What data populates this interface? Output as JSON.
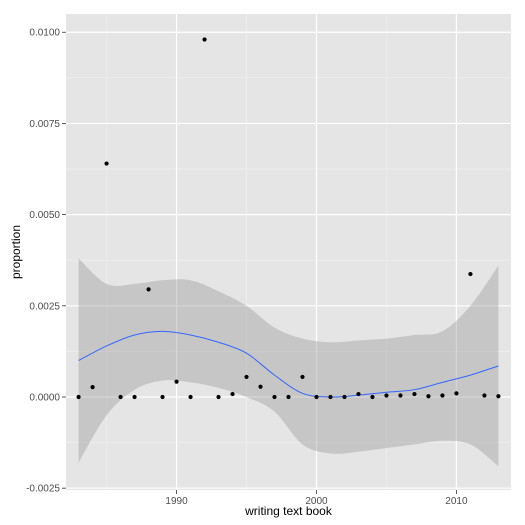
{
  "chart_data": {
    "type": "scatter",
    "title": "",
    "xlabel": "writing text book",
    "ylabel": "proportion",
    "xlim": [
      1982.1,
      2013.9
    ],
    "ylim": [
      -0.00255,
      0.0105
    ],
    "x_ticks": [
      1990,
      2000,
      2010
    ],
    "x_tick_labels": [
      "1990",
      "2000",
      "2010"
    ],
    "y_ticks": [
      -0.0025,
      0,
      0.0025,
      0.005,
      0.0075,
      0.01
    ],
    "y_tick_labels": [
      "-0.0025",
      "0.0000",
      "0.0025",
      "0.0050",
      "0.0075",
      "0.0100"
    ],
    "grid": true,
    "legend": "none",
    "colors": {
      "panel": "#e5e5e5",
      "grid_major": "#ffffff",
      "point": "#000000",
      "smooth_line": "#3366ff",
      "ribbon": "#999999"
    },
    "series": [
      {
        "kind": "points",
        "x": [
          1983,
          1984,
          1985,
          1986,
          1987,
          1988,
          1989,
          1990,
          1991,
          1992,
          1993,
          1994,
          1995,
          1996,
          1997,
          1998,
          1999,
          2000,
          2001,
          2002,
          2003,
          2004,
          2005,
          2006,
          2007,
          2008,
          2009,
          2010,
          2011,
          2012,
          2013
        ],
        "y": [
          0.0,
          0.00027,
          0.0064,
          0.0,
          0.0,
          0.00295,
          0.0,
          0.00042,
          0.0,
          0.0098,
          0.0,
          8e-05,
          0.00055,
          0.00028,
          0.0,
          0.0,
          0.00055,
          0.0,
          0.0,
          0.0,
          8e-05,
          0.0,
          4e-05,
          4e-05,
          8e-05,
          2e-05,
          4e-05,
          0.0001,
          0.00337,
          4e-05,
          2e-05
        ]
      },
      {
        "kind": "smooth",
        "x": [
          1983,
          1985,
          1987,
          1989,
          1991,
          1993,
          1995,
          1997,
          1999,
          2001,
          2003,
          2005,
          2007,
          2009,
          2011,
          2013
        ],
        "y": [
          0.001,
          0.0014,
          0.0017,
          0.0018,
          0.0017,
          0.0015,
          0.0012,
          0.0006,
          0.0001,
          0.0,
          5e-05,
          0.00013,
          0.0002,
          0.0004,
          0.0006,
          0.00085
        ],
        "lower": [
          -0.0018,
          -0.0005,
          0.0002,
          0.00045,
          0.0004,
          0.00025,
          0.0,
          -0.0004,
          -0.0013,
          -0.00155,
          -0.0015,
          -0.0014,
          -0.0013,
          -0.0012,
          -0.0013,
          -0.0019
        ],
        "upper": [
          0.0038,
          0.0031,
          0.0031,
          0.0032,
          0.0032,
          0.0029,
          0.0025,
          0.0019,
          0.0016,
          0.0015,
          0.00155,
          0.0016,
          0.0017,
          0.0018,
          0.0025,
          0.0036
        ]
      }
    ]
  }
}
